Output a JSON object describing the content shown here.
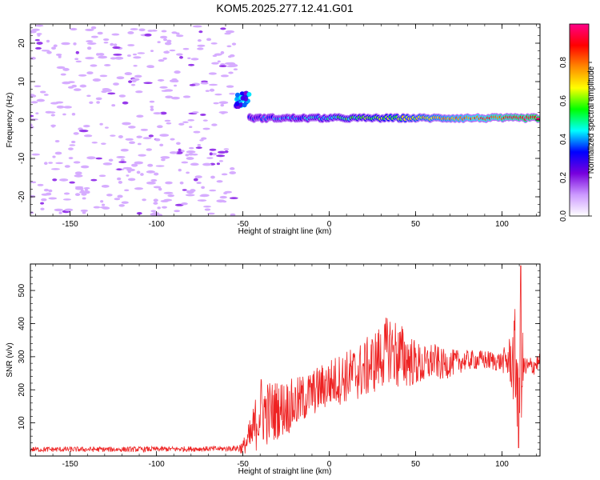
{
  "title": "KOM5.2025.277.12.41.G01",
  "chart_data": [
    {
      "type": "heatmap",
      "xlabel": "Height of straight line (km)",
      "ylabel": "Frequency (Hz)",
      "xlim": [
        -173,
        122
      ],
      "ylim": [
        -25,
        25
      ],
      "xticks": [
        -150,
        -100,
        -50,
        0,
        50,
        100
      ],
      "yticks": [
        -20,
        -10,
        0,
        10,
        20
      ],
      "grid": false,
      "colorbar": {
        "label": "Normalized spectral amplitude",
        "range": [
          0,
          1
        ],
        "ticks": [
          "0.0",
          "0.2",
          "0.4",
          "0.6",
          "0.8"
        ],
        "colors": [
          "#ffffff",
          "#cc99ff",
          "#7700dd",
          "#0000ff",
          "#00ffff",
          "#00ff00",
          "#ffff00",
          "#ff8800",
          "#ff0000",
          "#ff0088"
        ]
      },
      "regions": [
        {
          "x_range": [
            -173,
            -54
          ],
          "freq_range": [
            -25,
            25
          ],
          "amplitude": 0.1
        },
        {
          "x_range": [
            -54,
            -46
          ],
          "freq_range": [
            3.5,
            7
          ],
          "amplitude": 0.3
        },
        {
          "x_range": [
            -46,
            122
          ],
          "freq_range": [
            -1,
            2
          ],
          "amplitude_min": 0.3,
          "amplitude_max": 0.95
        }
      ]
    },
    {
      "type": "line",
      "xlabel": "Height of straight line (km)",
      "ylabel": "SNR (v/v)",
      "xlim": [
        -173,
        122
      ],
      "ylim": [
        0,
        580
      ],
      "xticks": [
        -150,
        -100,
        -50,
        0,
        50,
        100
      ],
      "yticks": [
        100,
        200,
        300,
        400,
        500
      ],
      "grid": false,
      "color": "#ee2222",
      "points": [
        [
          -173,
          20
        ],
        [
          -150,
          20
        ],
        [
          -120,
          20
        ],
        [
          -90,
          21
        ],
        [
          -60,
          22
        ],
        [
          -50,
          25
        ],
        [
          -45,
          60
        ],
        [
          -40,
          140
        ],
        [
          -35,
          130
        ],
        [
          -30,
          140
        ],
        [
          -20,
          155
        ],
        [
          -10,
          190
        ],
        [
          0,
          220
        ],
        [
          10,
          240
        ],
        [
          20,
          260
        ],
        [
          30,
          300
        ],
        [
          35,
          330
        ],
        [
          40,
          300
        ],
        [
          45,
          295
        ],
        [
          50,
          280
        ],
        [
          55,
          270
        ],
        [
          60,
          290
        ],
        [
          65,
          275
        ],
        [
          70,
          280
        ],
        [
          80,
          290
        ],
        [
          90,
          290
        ],
        [
          100,
          285
        ],
        [
          105,
          290
        ],
        [
          110,
          270
        ],
        [
          115,
          265
        ],
        [
          122,
          285
        ]
      ],
      "noise_amplitude": [
        [
          -173,
          8
        ],
        [
          -55,
          8
        ],
        [
          -50,
          22
        ],
        [
          -40,
          110
        ],
        [
          -30,
          90
        ],
        [
          -10,
          70
        ],
        [
          10,
          80
        ],
        [
          30,
          100
        ],
        [
          40,
          110
        ],
        [
          50,
          70
        ],
        [
          60,
          55
        ],
        [
          80,
          30
        ],
        [
          100,
          30
        ],
        [
          105,
          80
        ],
        [
          110,
          250
        ],
        [
          113,
          40
        ],
        [
          122,
          25
        ]
      ]
    }
  ]
}
